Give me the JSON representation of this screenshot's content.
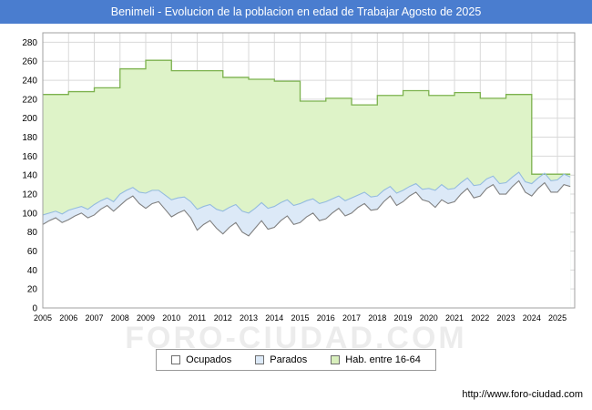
{
  "header": {
    "title": "Benimeli - Evolucion de la poblacion en edad de Trabajar Agosto de 2025"
  },
  "watermark": "FORO-CIUDAD.COM",
  "colors": {
    "title_bar": "#4a7dcf",
    "plot_background": "#ffffff",
    "grid": "#d9d9d9",
    "plot_border": "#a0a0a0",
    "hab_line": "#7cb24e",
    "hab_fill": "#def3c8",
    "parados_line": "#94bbdf",
    "parados_fill": "#dce9f7",
    "ocupados_line": "#808080",
    "ocupados_fill": "#ffffff"
  },
  "legend": {
    "items": [
      {
        "label": "Ocupados",
        "fill": "#ffffff"
      },
      {
        "label": "Parados",
        "fill": "#dce9f7"
      },
      {
        "label": "Hab. entre 16-64",
        "fill": "#d8efbc"
      }
    ]
  },
  "footer": {
    "url": "http://www.foro-ciudad.com"
  },
  "chart_data": {
    "type": "area",
    "title": "Benimeli - Evolucion de la poblacion en edad de Trabajar Agosto de 2025",
    "xlabel": "",
    "ylabel": "",
    "grid": true,
    "legend_position": "bottom",
    "xlim": [
      2005,
      2025.67
    ],
    "ylim": [
      0,
      290
    ],
    "x_ticks": [
      2005,
      2006,
      2007,
      2008,
      2009,
      2010,
      2011,
      2012,
      2013,
      2014,
      2015,
      2016,
      2017,
      2018,
      2019,
      2020,
      2021,
      2022,
      2023,
      2024,
      2025
    ],
    "y_ticks": [
      0,
      20,
      40,
      60,
      80,
      100,
      120,
      140,
      160,
      180,
      200,
      220,
      240,
      260,
      280
    ],
    "x_start": 2005,
    "x_step": 0.25,
    "grid_color": "#d9d9d9",
    "axis_color": "#a0a0a0",
    "tick_color": "#000000",
    "series": [
      {
        "name": "Hab. entre 16-64",
        "render": "step-annual",
        "line": "#7cb24e",
        "fill": "#def3c8",
        "years": [
          2005,
          2006,
          2007,
          2008,
          2009,
          2010,
          2011,
          2012,
          2013,
          2014,
          2015,
          2016,
          2017,
          2018,
          2019,
          2020,
          2021,
          2022,
          2023,
          2024,
          2025
        ],
        "values": [
          225,
          228,
          232,
          252,
          261,
          250,
          250,
          243,
          241,
          239,
          218,
          221,
          214,
          224,
          229,
          224,
          227,
          221,
          225,
          141,
          141
        ]
      },
      {
        "name": "Parados",
        "render": "area-stacked",
        "base": "Ocupados",
        "line": "#94bbdf",
        "fill": "#dce9f7",
        "values": [
          10,
          8,
          7,
          9,
          10,
          8,
          7,
          9,
          11,
          9,
          8,
          10,
          12,
          10,
          9,
          12,
          16,
          14,
          12,
          15,
          18,
          16,
          14,
          17,
          22,
          19,
          17,
          20,
          24,
          21,
          19,
          22,
          24,
          21,
          19,
          22,
          22,
          19,
          17,
          20,
          20,
          17,
          15,
          18,
          18,
          15,
          13,
          16,
          16,
          13,
          12,
          14,
          14,
          12,
          10,
          13,
          12,
          10,
          9,
          11,
          14,
          18,
          16,
          15,
          14,
          12,
          11,
          13,
          12,
          10,
          9,
          11,
          12,
          10,
          9,
          11,
          13,
          11,
          10,
          12,
          13,
          11,
          10
        ]
      },
      {
        "name": "Ocupados",
        "render": "area",
        "line": "#808080",
        "fill": "#ffffff",
        "values": [
          88,
          92,
          95,
          90,
          93,
          97,
          100,
          95,
          98,
          104,
          108,
          102,
          108,
          114,
          118,
          110,
          105,
          110,
          112,
          104,
          96,
          100,
          103,
          95,
          82,
          88,
          92,
          84,
          78,
          85,
          90,
          80,
          76,
          84,
          92,
          83,
          85,
          92,
          97,
          88,
          90,
          96,
          100,
          92,
          94,
          100,
          105,
          97,
          100,
          106,
          110,
          103,
          104,
          112,
          118,
          108,
          112,
          118,
          122,
          114,
          112,
          106,
          114,
          110,
          112,
          120,
          126,
          116,
          118,
          126,
          130,
          120,
          120,
          128,
          134,
          122,
          118,
          126,
          132,
          122,
          122,
          130,
          128
        ]
      }
    ]
  }
}
